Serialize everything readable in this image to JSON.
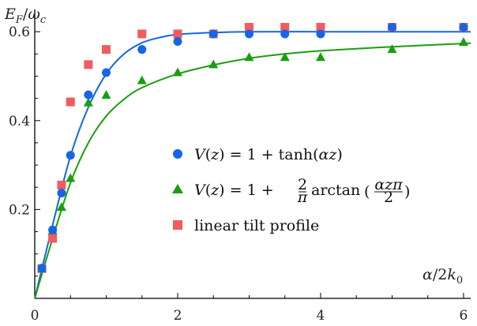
{
  "chart_data": {
    "type": "scatter",
    "xlabel": "α/2k₀",
    "ylabel": "E_F/ω_c",
    "xlim": [
      0,
      6.1
    ],
    "ylim": [
      0,
      0.65
    ],
    "xticks": [
      0,
      2,
      4,
      6
    ],
    "yticks": [
      0.2,
      0.4,
      0.6
    ],
    "xtick_labels": [
      "0",
      "2",
      "4",
      "6"
    ],
    "ytick_labels": [
      "0.2",
      "0.4",
      "0.6"
    ],
    "grid": false,
    "legend_position": "center-right",
    "series": [
      {
        "name": "V(z) = 1 + tanh(αz)",
        "marker": "circle",
        "color": "#1565e6",
        "x": [
          0.1,
          0.25,
          0.375,
          0.5,
          0.75,
          1.0,
          1.5,
          2.0,
          2.5,
          3.0,
          3.5,
          4.0,
          5.0,
          6.0
        ],
        "y": [
          0.068,
          0.154,
          0.237,
          0.322,
          0.458,
          0.508,
          0.56,
          0.578,
          0.595,
          0.595,
          0.595,
          0.595,
          0.61,
          0.61
        ]
      },
      {
        "name": "V(z) = 1 + (2/π) arctan(αzπ/2)",
        "marker": "triangle",
        "color": "#1a9e0e",
        "x": [
          0.1,
          0.25,
          0.375,
          0.5,
          0.75,
          1.0,
          1.5,
          2.0,
          2.5,
          3.0,
          3.5,
          4.0,
          5.0,
          6.0
        ],
        "y": [
          0.067,
          0.152,
          0.205,
          0.27,
          0.44,
          0.457,
          0.49,
          0.508,
          0.526,
          0.542,
          0.542,
          0.542,
          0.56,
          0.576
        ]
      },
      {
        "name": "linear tilt profile",
        "marker": "square",
        "color": "#f25b5f",
        "x": [
          0.1,
          0.25,
          0.375,
          0.5,
          0.75,
          1.0,
          1.5,
          2.0,
          2.5,
          3.0,
          3.5,
          4.0,
          5.0,
          6.0
        ],
        "y": [
          0.067,
          0.135,
          0.255,
          0.442,
          0.526,
          0.56,
          0.595,
          0.595,
          0.595,
          0.61,
          0.61,
          0.61,
          0.61,
          0.61
        ]
      }
    ],
    "fit_curves": [
      {
        "color": "#1565e6",
        "x": [
          0,
          0.25,
          0.5,
          0.75,
          1.0,
          1.25,
          1.5,
          1.75,
          2.0,
          2.5,
          3.0,
          4.0,
          5.0,
          6.1
        ],
        "y": [
          0,
          0.165,
          0.32,
          0.43,
          0.505,
          0.55,
          0.575,
          0.587,
          0.594,
          0.598,
          0.6,
          0.6,
          0.6,
          0.6
        ]
      },
      {
        "color": "#1a9e0e",
        "x": [
          0,
          0.25,
          0.5,
          0.75,
          1.0,
          1.25,
          1.5,
          2.0,
          2.5,
          3.0,
          3.5,
          4.0,
          5.0,
          6.1
        ],
        "y": [
          0,
          0.135,
          0.26,
          0.35,
          0.41,
          0.448,
          0.474,
          0.505,
          0.525,
          0.54,
          0.55,
          0.557,
          0.566,
          0.574
        ]
      }
    ]
  }
}
